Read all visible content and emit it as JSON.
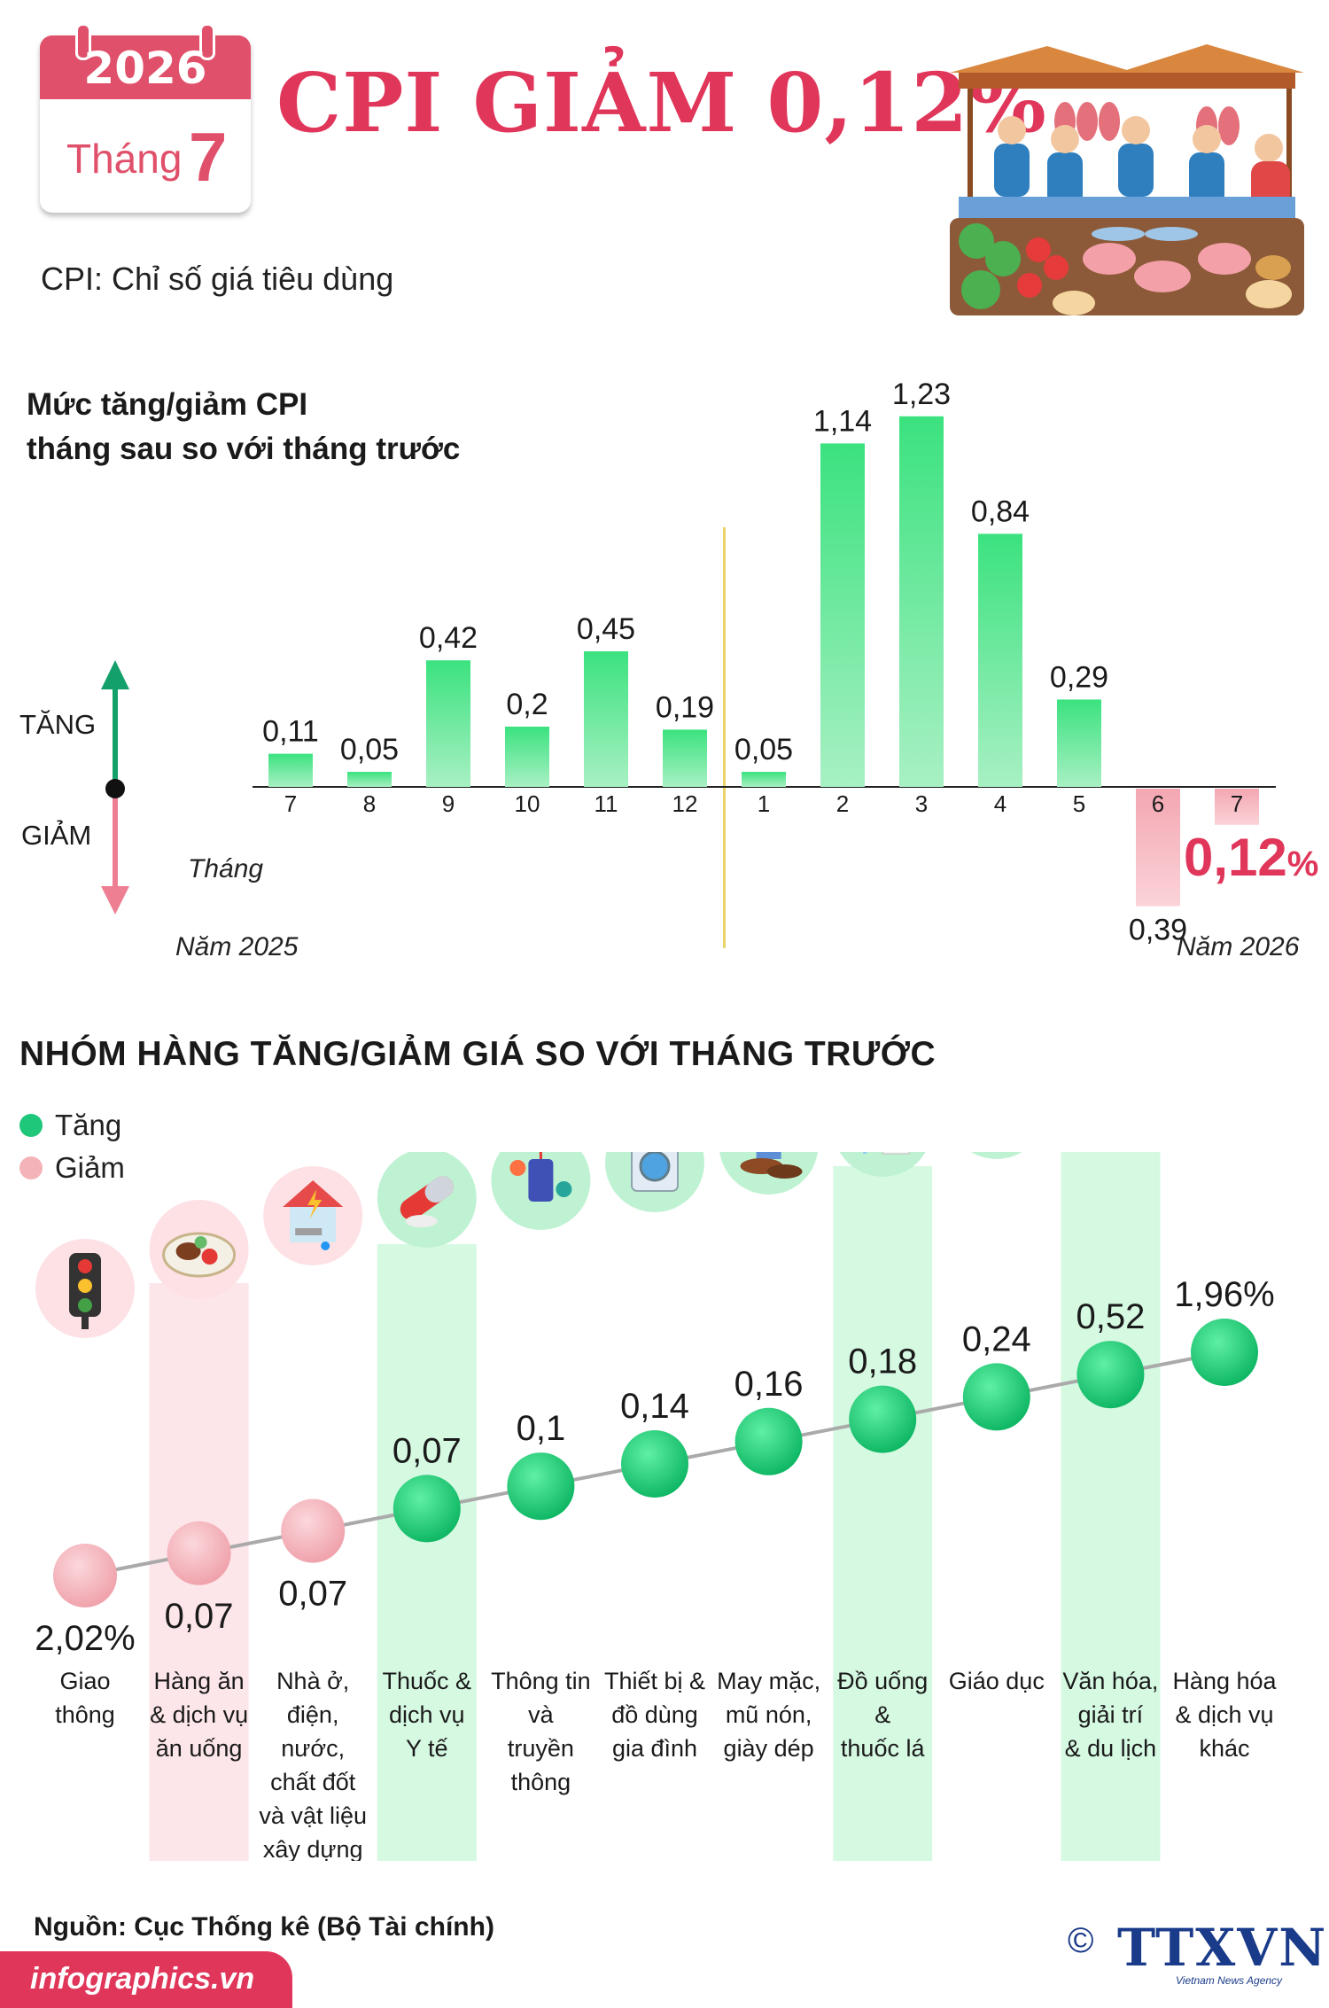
{
  "header": {
    "year": "2026",
    "month_label": "Tháng",
    "month_number": "7",
    "headline": "CPI GIẢM 0,12%",
    "cpi_definition": "CPI: Chỉ số giá tiêu dùng"
  },
  "colors": {
    "accent": "#e0365a",
    "increase": "#3fdc7a",
    "decrease": "#f4b3b8",
    "up_arrow": "#14a06a",
    "down_arrow": "#ee7f93",
    "divider": "#e8d46a"
  },
  "chart1": {
    "title_line1": "Mức tăng/giảm CPI",
    "title_line2": "tháng sau so với tháng trước",
    "up_label": "TĂNG",
    "down_label": "GIẢM",
    "x_label": "Tháng",
    "year_left": "Năm 2025",
    "year_right": "Năm 2026",
    "highlight_value": "0,12",
    "highlight_unit": "%"
  },
  "section2": {
    "title": "NHÓM HÀNG TĂNG/GIẢM GIÁ SO VỚI THÁNG TRƯỚC",
    "legend_up": "Tăng",
    "legend_down": "Giảm"
  },
  "chart_data": [
    {
      "type": "bar",
      "title": "Mức tăng/giảm CPI tháng sau so với tháng trước",
      "xlabel": "Tháng",
      "categories": [
        "7",
        "8",
        "9",
        "10",
        "11",
        "12",
        "1",
        "2",
        "3",
        "4",
        "5",
        "6",
        "7"
      ],
      "values": [
        0.11,
        0.05,
        0.42,
        0.2,
        0.45,
        0.19,
        0.05,
        1.14,
        1.23,
        0.84,
        0.29,
        -0.39,
        -0.12
      ],
      "value_labels": [
        "0,11",
        "0,05",
        "0,42",
        "0,2",
        "0,45",
        "0,19",
        "0,05",
        "1,14",
        "1,23",
        "0,84",
        "0,29",
        "0,39",
        "0,12%"
      ],
      "groups": [
        {
          "name": "Năm 2025",
          "categories": [
            "7",
            "8",
            "9",
            "10",
            "11",
            "12"
          ]
        },
        {
          "name": "Năm 2026",
          "categories": [
            "1",
            "2",
            "3",
            "4",
            "5",
            "6",
            "7"
          ]
        }
      ],
      "units": "%"
    },
    {
      "type": "scatter",
      "title": "NHÓM HÀNG TĂNG/GIẢM GIÁ SO VỚI THÁNG TRƯỚC",
      "categories": [
        "Giao thông",
        "Hàng ăn & dịch vụ ăn uống",
        "Nhà ở, điện, nước, chất đốt và vật liệu xây dựng",
        "Thuốc & dịch vụ Y tế",
        "Thông tin và truyền thông",
        "Thiết bị & đồ dùng gia đình",
        "May mặc, mũ nón, giày dép",
        "Đồ uống & thuốc lá",
        "Giáo dục",
        "Văn hóa, giải trí & du lịch",
        "Hàng hóa & dịch vụ khác"
      ],
      "category_lines": [
        [
          "Giao",
          "thông"
        ],
        [
          "Hàng ăn",
          "& dịch vụ",
          "ăn uống"
        ],
        [
          "Nhà ở,",
          "điện,",
          "nước,",
          "chất đốt",
          "và vật liệu",
          "xây dựng"
        ],
        [
          "Thuốc &",
          "dịch vụ",
          "Y tế"
        ],
        [
          "Thông tin",
          "và",
          "truyền",
          "thông"
        ],
        [
          "Thiết bị &",
          "đồ dùng",
          "gia đình"
        ],
        [
          "May mặc,",
          "mũ nón,",
          "giày dép"
        ],
        [
          "Đồ uống",
          "&",
          "thuốc lá"
        ],
        [
          "Giáo dục"
        ],
        [
          "Văn hóa,",
          "giải trí",
          "& du lịch"
        ],
        [
          "Hàng hóa",
          "& dịch vụ",
          "khác"
        ]
      ],
      "values": [
        -2.02,
        -0.07,
        -0.07,
        0.07,
        0.1,
        0.14,
        0.16,
        0.18,
        0.24,
        0.52,
        1.96
      ],
      "value_labels": [
        "2,02%",
        "0,07",
        "0,07",
        "0,07",
        "0,1",
        "0,14",
        "0,16",
        "0,18",
        "0,24",
        "0,52",
        "1,96%"
      ],
      "icons": [
        "traffic-light-icon",
        "food-plate-icon",
        "house-utilities-icon",
        "medicine-capsule-icon",
        "communication-icon",
        "washing-machine-icon",
        "shirt-shoes-icon",
        "drink-cigarette-icon",
        "graduation-cap-icon",
        "cinema-icon",
        "barber-icon"
      ],
      "highlight_columns": [
        1,
        3,
        7,
        9
      ],
      "units": "%"
    }
  ],
  "footer": {
    "source": "Nguồn: Cục Thống kê (Bộ Tài chính)",
    "site": "infographics.vn",
    "copyright_symbol": "©",
    "logo": "TTXVN",
    "logo_sub": "Vietnam News Agency"
  }
}
